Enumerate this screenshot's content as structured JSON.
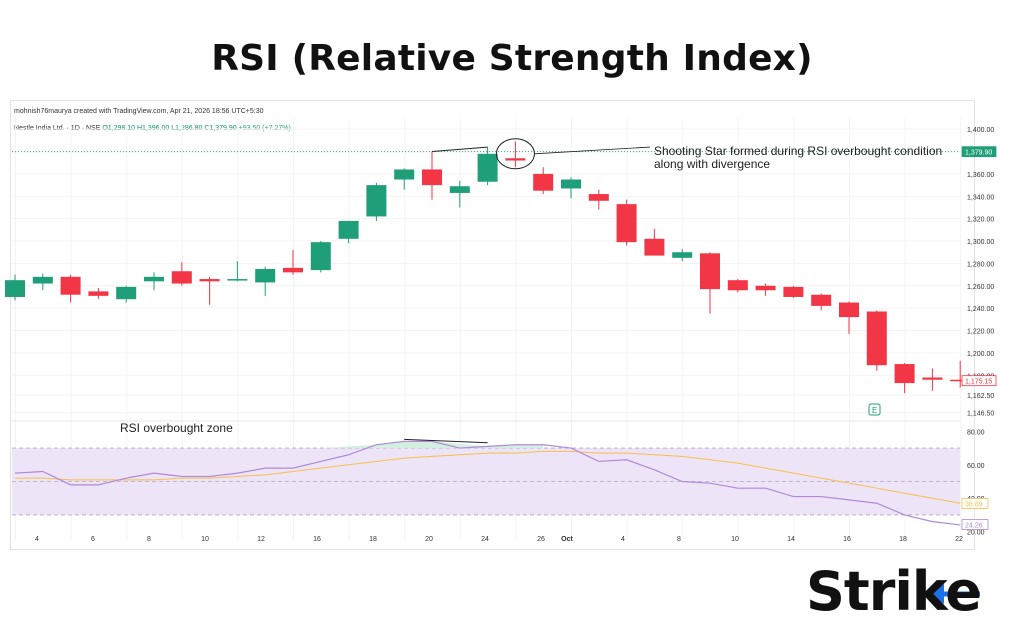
{
  "page_title": "RSI (Relative Strength Index)",
  "credit": "mohnish76maurya created with TradingView.com, Apr 21, 2026 18:56 UTC+5:30",
  "ohlc": {
    "symbol": "Nestle India Ltd. · 1D · NSE",
    "open": "O1,298.10",
    "high": "H1,396.00",
    "low": "L1,286.80",
    "close": "C1,379.90",
    "change": "+93.50 (+7.27%)"
  },
  "annotations": {
    "shooting_star": "Shooting Star formed during RSI overbought condition along with divergence",
    "rsi_zone": "RSI overbought zone"
  },
  "brand": "Strike",
  "colors": {
    "up": "#1f9e7a",
    "down": "#f23645",
    "rsi": "#b08ad9",
    "rsi_ma": "#f7c04a",
    "band": "#ede4f7"
  },
  "chart_data": [
    {
      "type": "candlestick",
      "symbol": "Nestle India Ltd.",
      "ylim": [
        1140,
        1410
      ],
      "yticks": [
        "1,400.00",
        "1,380.00",
        "1,360.00",
        "1,340.00",
        "1,320.00",
        "1,300.00",
        "1,280.00",
        "1,260.00",
        "1,240.00",
        "1,220.00",
        "1,200.00",
        "1,180.00",
        "1,162.50",
        "1,146.50"
      ],
      "ytick_values": [
        1400,
        1380,
        1360,
        1340,
        1320,
        1300,
        1280,
        1260,
        1240,
        1220,
        1200,
        1180,
        1162.5,
        1146.5
      ],
      "price_tags": [
        {
          "label": "1,379.90",
          "value": 1379.9,
          "color": "#1f9e7a"
        },
        {
          "label": "1,175.15",
          "value": 1175.15,
          "color": "#f23645"
        }
      ],
      "candles": [
        {
          "o": 1250,
          "h": 1270,
          "l": 1247,
          "c": 1265
        },
        {
          "o": 1262,
          "h": 1271,
          "l": 1256,
          "c": 1268
        },
        {
          "o": 1268,
          "h": 1270,
          "l": 1245,
          "c": 1252
        },
        {
          "o": 1255,
          "h": 1258,
          "l": 1248,
          "c": 1251
        },
        {
          "o": 1248,
          "h": 1260,
          "l": 1245,
          "c": 1259
        },
        {
          "o": 1264,
          "h": 1272,
          "l": 1256,
          "c": 1268
        },
        {
          "o": 1273,
          "h": 1281,
          "l": 1260,
          "c": 1262
        },
        {
          "o": 1266,
          "h": 1268,
          "l": 1243,
          "c": 1264
        },
        {
          "o": 1265,
          "h": 1282,
          "l": 1264,
          "c": 1266
        },
        {
          "o": 1263,
          "h": 1277,
          "l": 1251,
          "c": 1275
        },
        {
          "o": 1276,
          "h": 1292,
          "l": 1270,
          "c": 1272
        },
        {
          "o": 1274,
          "h": 1300,
          "l": 1272,
          "c": 1299
        },
        {
          "o": 1302,
          "h": 1318,
          "l": 1298,
          "c": 1318
        },
        {
          "o": 1322,
          "h": 1352,
          "l": 1318,
          "c": 1350
        },
        {
          "o": 1355,
          "h": 1365,
          "l": 1346,
          "c": 1364
        },
        {
          "o": 1364,
          "h": 1380,
          "l": 1337,
          "c": 1350
        },
        {
          "o": 1343,
          "h": 1354,
          "l": 1330,
          "c": 1349
        },
        {
          "o": 1353,
          "h": 1384,
          "l": 1350,
          "c": 1378
        },
        {
          "o": 1374,
          "h": 1389,
          "l": 1366,
          "c": 1372
        },
        {
          "o": 1360,
          "h": 1366,
          "l": 1342,
          "c": 1345
        },
        {
          "o": 1347,
          "h": 1357,
          "l": 1338,
          "c": 1355
        },
        {
          "o": 1342,
          "h": 1346,
          "l": 1328,
          "c": 1336
        },
        {
          "o": 1333,
          "h": 1337,
          "l": 1296,
          "c": 1299
        },
        {
          "o": 1302,
          "h": 1311,
          "l": 1287,
          "c": 1287
        },
        {
          "o": 1285,
          "h": 1293,
          "l": 1282,
          "c": 1290
        },
        {
          "o": 1289,
          "h": 1290,
          "l": 1235,
          "c": 1257
        },
        {
          "o": 1265,
          "h": 1266,
          "l": 1254,
          "c": 1256
        },
        {
          "o": 1260,
          "h": 1262,
          "l": 1251,
          "c": 1256
        },
        {
          "o": 1259,
          "h": 1260,
          "l": 1249,
          "c": 1250
        },
        {
          "o": 1252,
          "h": 1253,
          "l": 1238,
          "c": 1242
        },
        {
          "o": 1245,
          "h": 1246,
          "l": 1217,
          "c": 1232
        },
        {
          "o": 1237,
          "h": 1238,
          "l": 1184,
          "c": 1189
        },
        {
          "o": 1190,
          "h": 1191,
          "l": 1164,
          "c": 1173
        },
        {
          "o": 1178,
          "h": 1186,
          "l": 1166,
          "c": 1176
        },
        {
          "o": 1176,
          "h": 1193,
          "l": 1169,
          "c": 1175
        }
      ],
      "x_ticks": [
        "4",
        "6",
        "8",
        "10",
        "12",
        "14",
        "16",
        "18",
        "20",
        "22",
        "24",
        "26",
        "Oct",
        "4",
        "6",
        "8",
        "10",
        "14",
        "16",
        "18",
        "22"
      ]
    },
    {
      "type": "line",
      "name": "RSI",
      "ylim": [
        15,
        85
      ],
      "yticks": [
        "80.00",
        "60.00",
        "40.00",
        "20.00"
      ],
      "ytick_values": [
        80,
        60,
        40,
        20
      ],
      "overbought_zone": [
        70,
        30
      ],
      "value_tags": [
        {
          "label": "36.89",
          "value": 36.89,
          "color": "#f7c04a"
        },
        {
          "label": "24.26",
          "value": 24.26,
          "color": "#b08ad9"
        }
      ],
      "series": [
        {
          "values": [
            55,
            56,
            48,
            48,
            52,
            55,
            53,
            53,
            55,
            58,
            58,
            62,
            66,
            72,
            74,
            74,
            70,
            71,
            72,
            72,
            70,
            62,
            63,
            57,
            50,
            49,
            46,
            46,
            41,
            41,
            39,
            37,
            30,
            26,
            24
          ]
        },
        {
          "values": [
            52,
            52,
            51,
            51,
            51,
            51,
            52,
            52,
            53,
            54,
            56,
            58,
            60,
            62,
            64,
            65,
            66,
            67,
            67,
            68,
            68,
            67,
            67,
            66,
            65,
            63,
            61,
            58,
            55,
            52,
            49,
            46,
            43,
            40,
            37
          ]
        }
      ]
    }
  ]
}
